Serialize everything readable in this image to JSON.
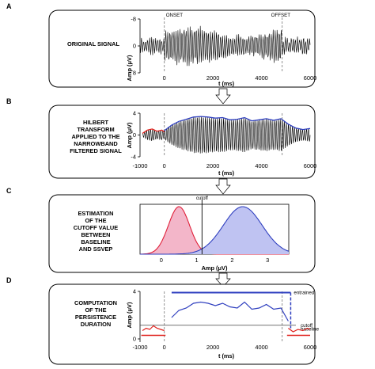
{
  "panel_letters": [
    "A",
    "B",
    "C",
    "D"
  ],
  "chart_data": [
    {
      "panel": "A",
      "type": "line",
      "title": "ORIGINAL SIGNAL",
      "xlabel": "t (ms)",
      "ylabel": "Amp (μV)",
      "xlim": [
        -1000,
        6000
      ],
      "ylim": [
        -8,
        8
      ],
      "y_inverted": true,
      "x_ticks": [
        "0",
        "2000",
        "4000",
        "6000"
      ],
      "y_ticks": [
        "-8",
        "0",
        "8"
      ],
      "annotations": [
        "ONSET",
        "OFFSET"
      ],
      "event_lines_x": [
        0,
        4850
      ],
      "series": [
        {
          "color": "#000000",
          "baseline_amplitude": 2,
          "ssvep_amplitude": 5.5,
          "ssvep_start": 0,
          "ssvep_end": 4850
        }
      ]
    },
    {
      "panel": "B",
      "type": "line",
      "title": "HILBERT TRANSFORM APPLIED TO THE NARROWBAND FILTERED SIGNAL",
      "title_lines": [
        "HILBERT",
        "TRANSFORM",
        "APPLIED TO THE",
        "NARROWBAND",
        "FILTERED SIGNAL"
      ],
      "xlabel": "t (ms)",
      "ylabel": "Amp (μV)",
      "xlim": [
        -1000,
        6000
      ],
      "ylim": [
        -4,
        4
      ],
      "x_ticks": [
        "-1000",
        "0",
        "2000",
        "4000",
        "6000"
      ],
      "y_ticks": [
        "4",
        "0",
        "-4"
      ],
      "event_lines_x": [
        0,
        4850
      ],
      "envelope_baseline": {
        "color": "#e0201b",
        "x": [
          -900,
          -700,
          -500,
          -300,
          -100,
          0
        ],
        "y": [
          0.3,
          0.9,
          1.1,
          0.7,
          0.9,
          0.6
        ]
      },
      "envelope_ssvep": {
        "color": "#2f3fbf",
        "x": [
          0,
          300,
          600,
          900,
          1200,
          1500,
          1800,
          2100,
          2400,
          2700,
          3000,
          3300,
          3600,
          3900,
          4200,
          4500,
          4800,
          5100,
          5400,
          5700,
          6000
        ],
        "y": [
          0.8,
          1.8,
          2.5,
          2.9,
          3.3,
          3.4,
          3.3,
          3.1,
          3.2,
          2.8,
          2.9,
          3.2,
          2.6,
          2.8,
          3.0,
          2.7,
          3.0,
          2.0,
          1.3,
          1.0,
          1.2
        ]
      }
    },
    {
      "panel": "C",
      "type": "area",
      "title": "Estimation of the cutoff value between baseline and SSVEP",
      "title_lines": [
        "Estimation",
        "of the",
        "cutoff value",
        "between",
        "baseline",
        "and SSVEP"
      ],
      "xlabel": "Amp (μV)",
      "xlim": [
        -0.6,
        3.6
      ],
      "x_ticks": [
        "0",
        "1",
        "2",
        "3"
      ],
      "annotations": [
        "cutoff"
      ],
      "cutoff": 1.15,
      "series": [
        {
          "color": "#e0203a",
          "fill": "#f3b6c9",
          "mean": 0.5,
          "sd": 0.3,
          "peak": 1.0
        },
        {
          "color": "#2f3fbf",
          "fill": "#bfc3f2",
          "mean": 2.3,
          "sd": 0.55,
          "peak": 1.0
        }
      ]
    },
    {
      "panel": "D",
      "type": "line",
      "title": "Computation of the persistence duration",
      "title_lines": [
        "COMPUTATION",
        "OF THE",
        "PERSISTENCE",
        "DURATION"
      ],
      "xlabel": "t (ms)",
      "ylabel": "Amp (μV)",
      "xlim": [
        -1000,
        6000
      ],
      "ylim": [
        0,
        4
      ],
      "x_ticks": [
        "-1000",
        "0",
        "2000",
        "4000",
        "6000"
      ],
      "y_ticks": [
        "4",
        "0"
      ],
      "annotations": [
        "entrained",
        "cutoff",
        "baseline"
      ],
      "event_lines_x": [
        0,
        4850
      ],
      "cutoff": 1.15,
      "entrained_level": 3.9,
      "entrained_range": [
        300,
        5200
      ],
      "baseline_level": 0.3,
      "series": [
        {
          "name": "baseline",
          "color": "#e0201b",
          "x": [
            -900,
            -750,
            -600,
            -450,
            -300,
            -150,
            0
          ],
          "y": [
            0.7,
            0.9,
            0.8,
            1.1,
            0.9,
            0.8,
            0.7
          ]
        },
        {
          "color": "#2f3fbf",
          "x": [
            300,
            600,
            900,
            1200,
            1500,
            1800,
            2100,
            2400,
            2700,
            3000,
            3300,
            3600,
            3900,
            4200,
            4500,
            4800,
            5100
          ],
          "y": [
            1.8,
            2.4,
            2.6,
            3.0,
            3.1,
            3.0,
            2.8,
            3.0,
            2.7,
            2.6,
            3.1,
            2.5,
            2.6,
            2.9,
            2.5,
            2.6,
            1.5
          ]
        },
        {
          "color": "#e0201b",
          "x": [
            5100,
            5300,
            5500,
            5700,
            5900,
            6000
          ],
          "y": [
            0.9,
            0.6,
            0.8,
            0.7,
            0.9,
            0.8
          ]
        }
      ]
    }
  ]
}
